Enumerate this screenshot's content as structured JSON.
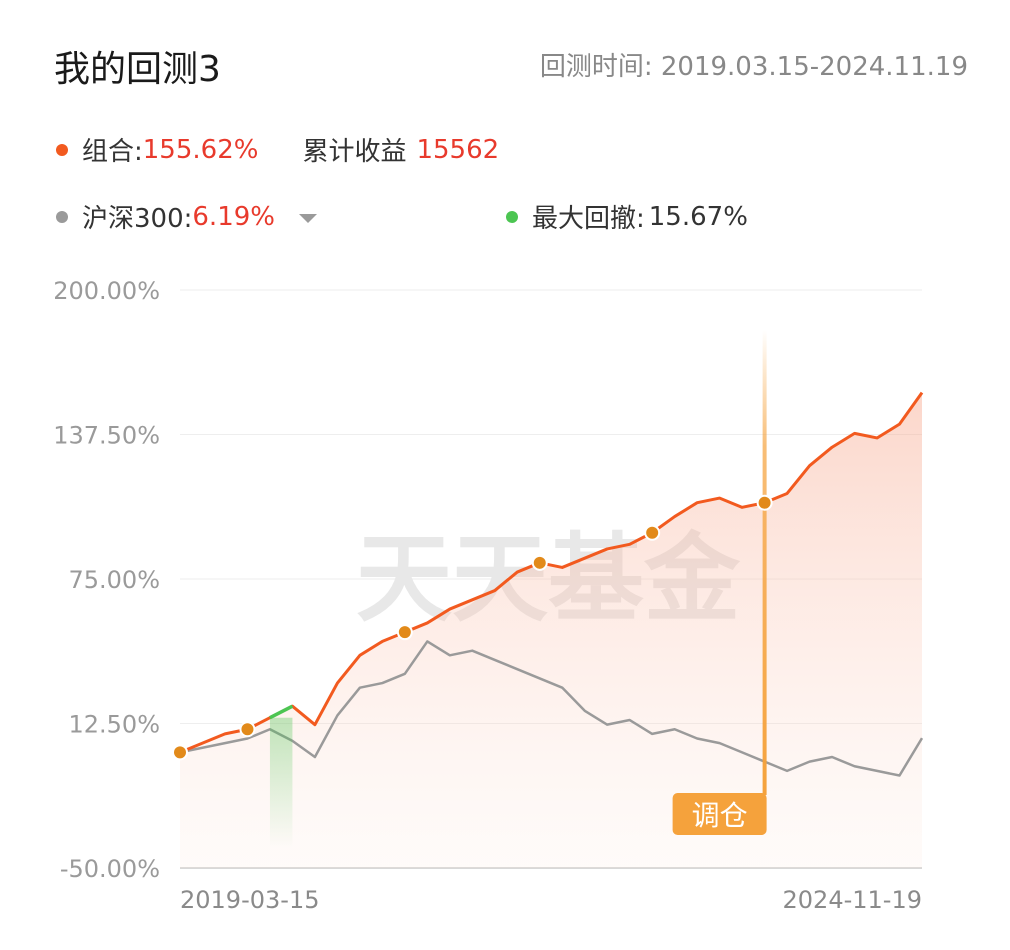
{
  "title": "我的回测3",
  "period": {
    "label": "回测时间:",
    "value": "2019.03.15-2024.11.19"
  },
  "portfolio": {
    "label": "组合:",
    "return": "155.62%",
    "cum_label": "累计收益",
    "cum_value": "15562",
    "color": "#f25a1f"
  },
  "benchmark": {
    "label": "沪深300:",
    "return": "6.19%",
    "color": "#9a9a9a"
  },
  "drawdown": {
    "label": "最大回撤:",
    "value": "15.67%",
    "color": "#4cc552"
  },
  "watermark": "天天基金",
  "rebalance_label": "调仓",
  "chart_data": {
    "type": "line",
    "title": "",
    "xlabel": "",
    "ylabel": "",
    "ylim": [
      -50,
      200
    ],
    "y_ticks": [
      "200.00%",
      "137.50%",
      "75.00%",
      "12.50%",
      "-50.00%"
    ],
    "y_tick_values": [
      200,
      137.5,
      75,
      12.5,
      -50
    ],
    "x_ticks": [
      "2019-03-15",
      "2024-11-19"
    ],
    "x": [
      "2019-03-15",
      "2019-07",
      "2019-09",
      "2019-11",
      "2020-01",
      "2020-03",
      "2020-05",
      "2020-07",
      "2020-09",
      "2020-11",
      "2021-01",
      "2021-03",
      "2021-05",
      "2021-07",
      "2021-09",
      "2021-11",
      "2022-01",
      "2022-03",
      "2022-05",
      "2022-07",
      "2022-09",
      "2022-11",
      "2023-01",
      "2023-03",
      "2023-05",
      "2023-07",
      "2023-09",
      "2023-11",
      "2024-01",
      "2024-03",
      "2024-05",
      "2024-07",
      "2024-09",
      "2024-11-19"
    ],
    "series": [
      {
        "name": "组合",
        "values": [
          0,
          4,
          8,
          10,
          15,
          20,
          12,
          30,
          42,
          48,
          52,
          56,
          62,
          66,
          70,
          78,
          82,
          80,
          84,
          88,
          90,
          95,
          102,
          108,
          110,
          106,
          108,
          112,
          124,
          132,
          138,
          136,
          142,
          155.62
        ]
      },
      {
        "name": "沪深300",
        "values": [
          0,
          2,
          4,
          6,
          10,
          5,
          -2,
          16,
          28,
          30,
          34,
          48,
          42,
          44,
          40,
          36,
          32,
          28,
          18,
          12,
          14,
          8,
          10,
          6,
          4,
          0,
          -4,
          -8,
          -4,
          -2,
          -6,
          -8,
          -10,
          6.19
        ]
      }
    ],
    "drawdown_segment": {
      "from": "2020-01",
      "to": "2020-03",
      "value": 15.67
    },
    "rebalance_points": [
      "2019-03-15",
      "2019-11",
      "2021-01",
      "2022-01",
      "2022-11",
      "2023-09"
    ],
    "rebalance_marker_at": "2023-09"
  }
}
